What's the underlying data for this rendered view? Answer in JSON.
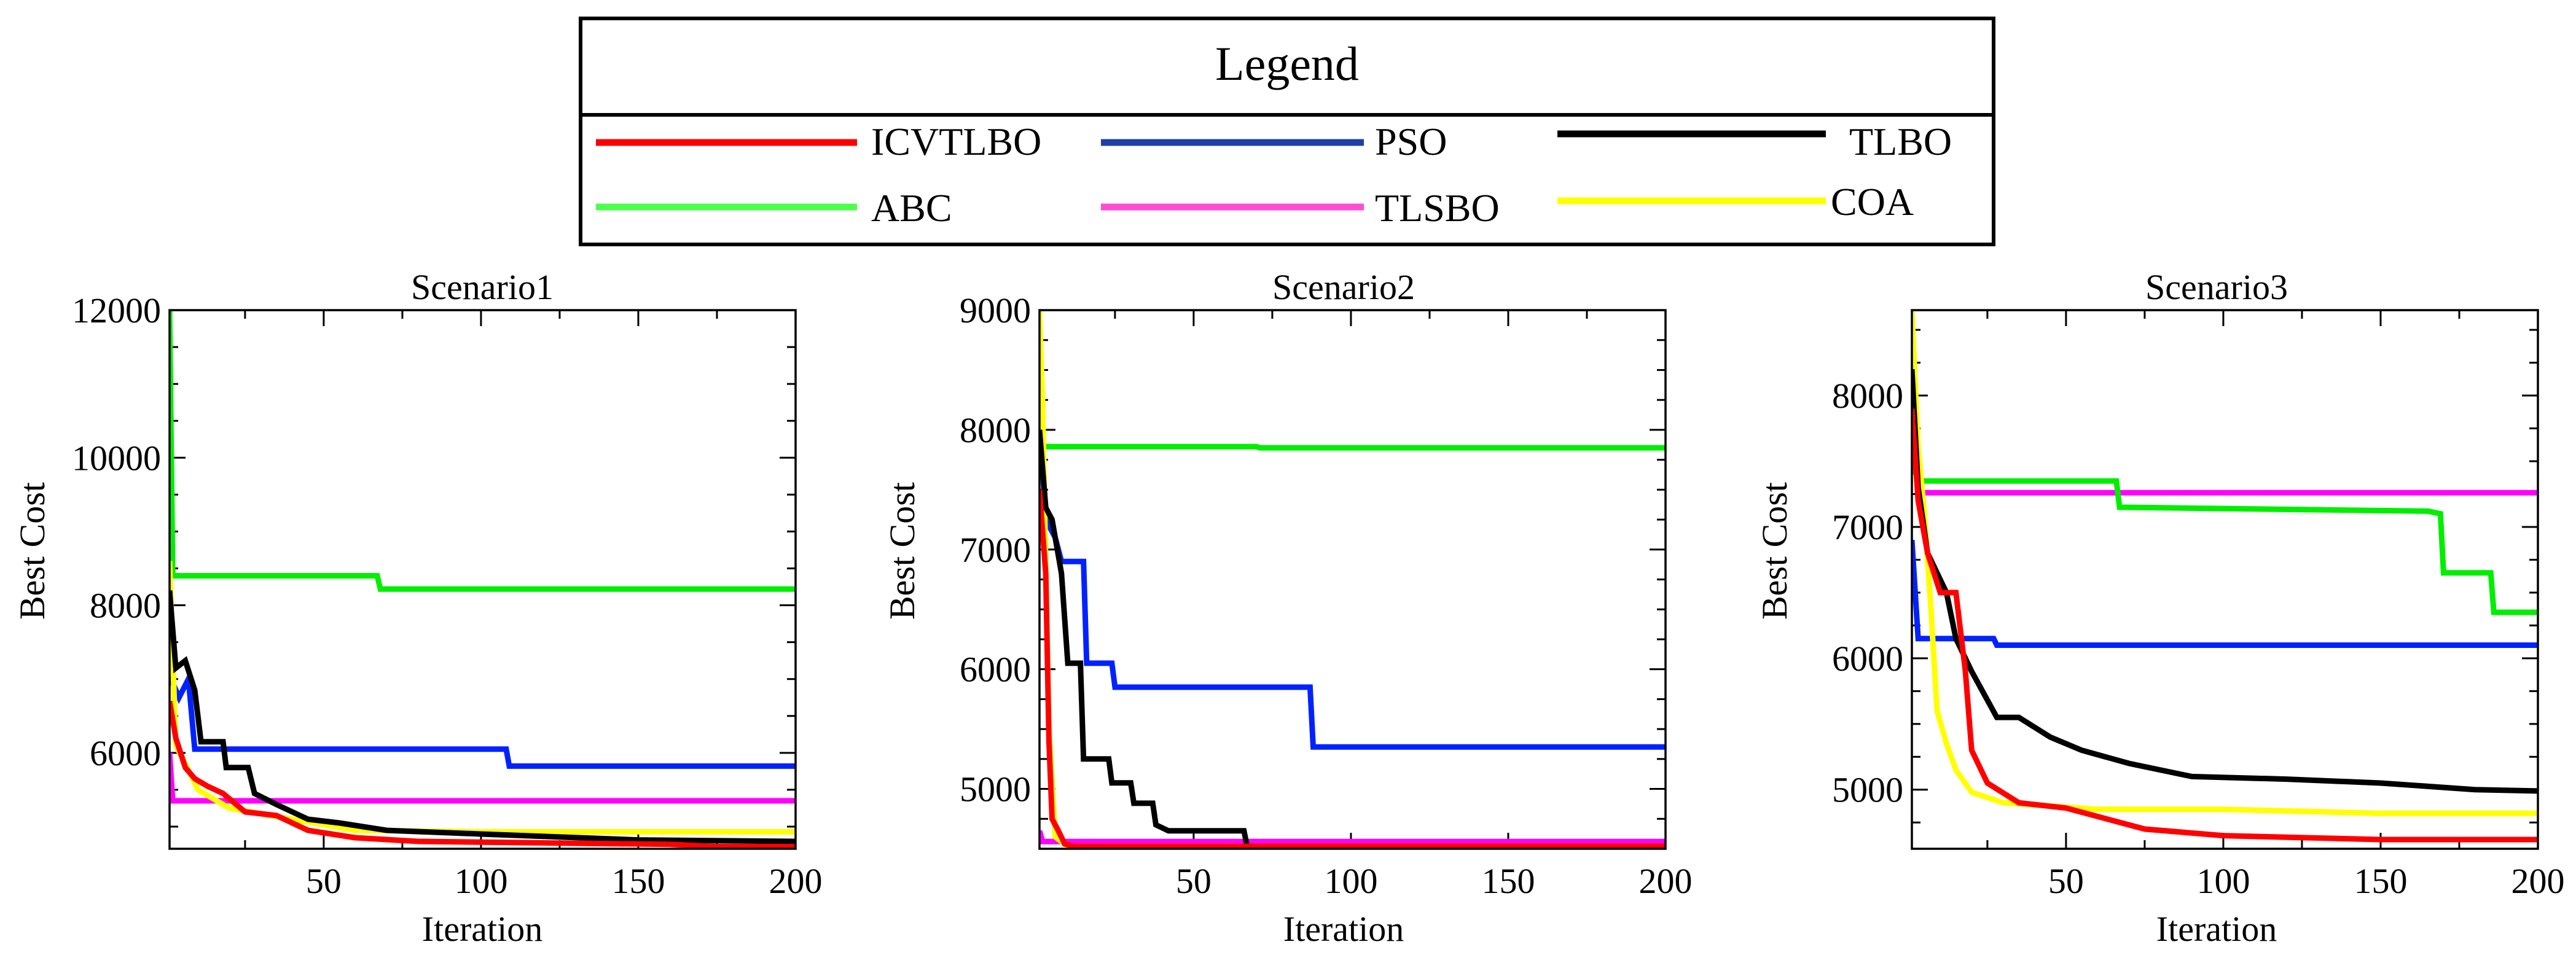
{
  "legend": {
    "title": "Legend",
    "entries": [
      {
        "label": "ICVTLBO",
        "color": "#ff0000"
      },
      {
        "label": "PSO",
        "color": "#1f3fa8"
      },
      {
        "label": "TLBO",
        "color": "#000000"
      },
      {
        "label": "ABC",
        "color": "#4dff4d"
      },
      {
        "label": "TLSBO",
        "color": "#ff4dd2"
      },
      {
        "label": "COA",
        "color": "#ffff00"
      }
    ]
  },
  "chart_data": [
    {
      "type": "line",
      "title": "Scenario1",
      "xlabel": "Iteration",
      "ylabel": "Best Cost",
      "xlim": [
        1,
        200
      ],
      "ylim": [
        4700,
        12000
      ],
      "xticks": [
        50,
        100,
        150,
        200
      ],
      "yticks": [
        6000,
        8000,
        10000,
        12000
      ],
      "series": [
        {
          "name": "ABC",
          "color": "#00ee00",
          "points": [
            [
              1,
              12000
            ],
            [
              2,
              8400
            ],
            [
              67,
              8400
            ],
            [
              68,
              8220
            ],
            [
              200,
              8220
            ]
          ]
        },
        {
          "name": "PSO",
          "color": "#0022ff",
          "points": [
            [
              1,
              7050
            ],
            [
              4,
              6750
            ],
            [
              7,
              7000
            ],
            [
              9,
              6050
            ],
            [
              108,
              6050
            ],
            [
              109,
              5820
            ],
            [
              200,
              5820
            ]
          ]
        },
        {
          "name": "TLSBO",
          "color": "#ff00ff",
          "points": [
            [
              1,
              6000
            ],
            [
              2,
              5350
            ],
            [
              200,
              5350
            ]
          ]
        },
        {
          "name": "COA",
          "color": "#ffff00",
          "points": [
            [
              1,
              8600
            ],
            [
              3,
              6100
            ],
            [
              6,
              5850
            ],
            [
              10,
              5500
            ],
            [
              20,
              5250
            ],
            [
              40,
              5100
            ],
            [
              60,
              4950
            ],
            [
              100,
              4930
            ],
            [
              200,
              4930
            ]
          ]
        },
        {
          "name": "TLBO",
          "color": "#000000",
          "points": [
            [
              1,
              8200
            ],
            [
              3,
              7150
            ],
            [
              6,
              7250
            ],
            [
              9,
              6850
            ],
            [
              11,
              6150
            ],
            [
              18,
              6150
            ],
            [
              19,
              5800
            ],
            [
              26,
              5800
            ],
            [
              28,
              5450
            ],
            [
              35,
              5300
            ],
            [
              45,
              5100
            ],
            [
              55,
              5050
            ],
            [
              70,
              4950
            ],
            [
              100,
              4900
            ],
            [
              150,
              4820
            ],
            [
              200,
              4800
            ]
          ]
        },
        {
          "name": "ICVTLBO",
          "color": "#ff0000",
          "points": [
            [
              1,
              6700
            ],
            [
              3,
              6200
            ],
            [
              6,
              5800
            ],
            [
              9,
              5650
            ],
            [
              13,
              5550
            ],
            [
              18,
              5450
            ],
            [
              25,
              5200
            ],
            [
              35,
              5150
            ],
            [
              45,
              4950
            ],
            [
              60,
              4850
            ],
            [
              80,
              4800
            ],
            [
              120,
              4780
            ],
            [
              160,
              4760
            ],
            [
              175,
              4730
            ],
            [
              200,
              4730
            ]
          ]
        }
      ]
    },
    {
      "type": "line",
      "title": "Scenario2",
      "xlabel": "Iteration",
      "ylabel": "Best Cost",
      "xlim": [
        1,
        200
      ],
      "ylim": [
        4500,
        9000
      ],
      "xticks": [
        50,
        100,
        150,
        200
      ],
      "yticks": [
        5000,
        6000,
        7000,
        8000,
        9000
      ],
      "series": [
        {
          "name": "ABC",
          "color": "#00ee00",
          "points": [
            [
              1,
              7860
            ],
            [
              70,
              7860
            ],
            [
              71,
              7850
            ],
            [
              200,
              7850
            ]
          ]
        },
        {
          "name": "PSO",
          "color": "#0022ff",
          "points": [
            [
              1,
              8100
            ],
            [
              3,
              7250
            ],
            [
              6,
              7100
            ],
            [
              8,
              6900
            ],
            [
              15,
              6900
            ],
            [
              16,
              6050
            ],
            [
              24,
              6050
            ],
            [
              25,
              5850
            ],
            [
              87,
              5850
            ],
            [
              88,
              5350
            ],
            [
              200,
              5350
            ]
          ]
        },
        {
          "name": "TLSBO",
          "color": "#ff00ff",
          "points": [
            [
              1,
              4650
            ],
            [
              2,
              4560
            ],
            [
              200,
              4560
            ]
          ]
        },
        {
          "name": "COA",
          "color": "#ffff00",
          "points": [
            [
              1,
              9000
            ],
            [
              2,
              8200
            ],
            [
              4,
              5500
            ],
            [
              6,
              4600
            ],
            [
              10,
              4520
            ],
            [
              200,
              4520
            ]
          ]
        },
        {
          "name": "TLBO",
          "color": "#000000",
          "points": [
            [
              1,
              8000
            ],
            [
              3,
              7350
            ],
            [
              5,
              7250
            ],
            [
              8,
              6800
            ],
            [
              10,
              6050
            ],
            [
              14,
              6050
            ],
            [
              15,
              5250
            ],
            [
              23,
              5250
            ],
            [
              24,
              5050
            ],
            [
              30,
              5050
            ],
            [
              31,
              4880
            ],
            [
              37,
              4880
            ],
            [
              38,
              4700
            ],
            [
              42,
              4650
            ],
            [
              66,
              4650
            ],
            [
              67,
              4520
            ],
            [
              200,
              4520
            ]
          ]
        },
        {
          "name": "ICVTLBO",
          "color": "#ff0000",
          "points": [
            [
              1,
              7500
            ],
            [
              3,
              6800
            ],
            [
              4,
              5400
            ],
            [
              5,
              4750
            ],
            [
              7,
              4650
            ],
            [
              9,
              4540
            ],
            [
              12,
              4520
            ],
            [
              200,
              4520
            ]
          ]
        }
      ]
    },
    {
      "type": "line",
      "title": "Scenario3",
      "xlabel": "Iteration",
      "ylabel": "Best Cost",
      "xlim": [
        1,
        200
      ],
      "ylim": [
        4550,
        8650
      ],
      "xticks": [
        50,
        100,
        150,
        200
      ],
      "yticks": [
        5000,
        6000,
        7000,
        8000
      ],
      "series": [
        {
          "name": "TLSBO",
          "color": "#ff00ff",
          "points": [
            [
              1,
              7800
            ],
            [
              4,
              7260
            ],
            [
              200,
              7260
            ]
          ]
        },
        {
          "name": "ABC",
          "color": "#00ee00",
          "points": [
            [
              1,
              7500
            ],
            [
              3,
              7350
            ],
            [
              66,
              7350
            ],
            [
              67,
              7150
            ],
            [
              165,
              7120
            ],
            [
              169,
              7100
            ],
            [
              170,
              6650
            ],
            [
              185,
              6650
            ],
            [
              186,
              6350
            ],
            [
              200,
              6350
            ]
          ]
        },
        {
          "name": "PSO",
          "color": "#0022ff",
          "points": [
            [
              1,
              6900
            ],
            [
              3,
              6150
            ],
            [
              27,
              6150
            ],
            [
              28,
              6100
            ],
            [
              200,
              6100
            ]
          ]
        },
        {
          "name": "COA",
          "color": "#ffff00",
          "points": [
            [
              1,
              8650
            ],
            [
              3,
              7600
            ],
            [
              5,
              7100
            ],
            [
              7,
              6400
            ],
            [
              9,
              5600
            ],
            [
              12,
              5350
            ],
            [
              15,
              5150
            ],
            [
              20,
              4980
            ],
            [
              30,
              4900
            ],
            [
              60,
              4850
            ],
            [
              100,
              4850
            ],
            [
              150,
              4820
            ],
            [
              200,
              4820
            ]
          ]
        },
        {
          "name": "TLBO",
          "color": "#000000",
          "points": [
            [
              1,
              8200
            ],
            [
              3,
              7300
            ],
            [
              6,
              6800
            ],
            [
              12,
              6500
            ],
            [
              15,
              6150
            ],
            [
              20,
              5900
            ],
            [
              28,
              5550
            ],
            [
              35,
              5550
            ],
            [
              45,
              5400
            ],
            [
              55,
              5300
            ],
            [
              70,
              5200
            ],
            [
              90,
              5100
            ],
            [
              120,
              5080
            ],
            [
              150,
              5050
            ],
            [
              180,
              5000
            ],
            [
              200,
              4990
            ]
          ]
        },
        {
          "name": "ICVTLBO",
          "color": "#ff0000",
          "points": [
            [
              1,
              7900
            ],
            [
              3,
              7200
            ],
            [
              6,
              6800
            ],
            [
              10,
              6500
            ],
            [
              15,
              6500
            ],
            [
              18,
              5900
            ],
            [
              20,
              5300
            ],
            [
              25,
              5050
            ],
            [
              35,
              4900
            ],
            [
              50,
              4860
            ],
            [
              75,
              4700
            ],
            [
              100,
              4650
            ],
            [
              150,
              4620
            ],
            [
              200,
              4620
            ]
          ]
        }
      ]
    }
  ]
}
